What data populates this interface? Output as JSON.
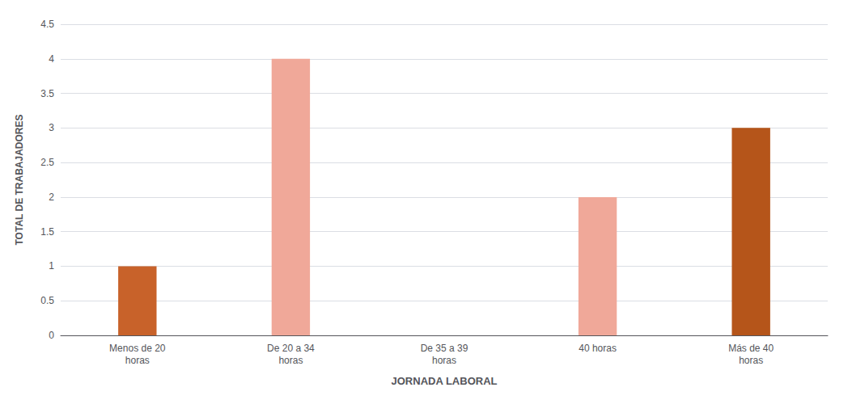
{
  "chart_data": {
    "type": "bar",
    "categories": [
      "Menos de 20\nhoras",
      "De 20 a 34\nhoras",
      "De 35 a 39\nhoras",
      "40 horas",
      "Más de 40\nhoras"
    ],
    "values": [
      1,
      4,
      0,
      2,
      3
    ],
    "colors": [
      "#C8622A",
      "#F0A899",
      "#F0A899",
      "#F0A899",
      "#B5551A"
    ],
    "xlabel": "JORNADA LABORAL",
    "ylabel": "TOTAL DE TRABAJADORES",
    "ylim": [
      0,
      4.5
    ],
    "yticks": [
      0,
      0.5,
      1,
      1.5,
      2,
      2.5,
      3,
      3.5,
      4,
      4.5
    ],
    "grid": true
  }
}
